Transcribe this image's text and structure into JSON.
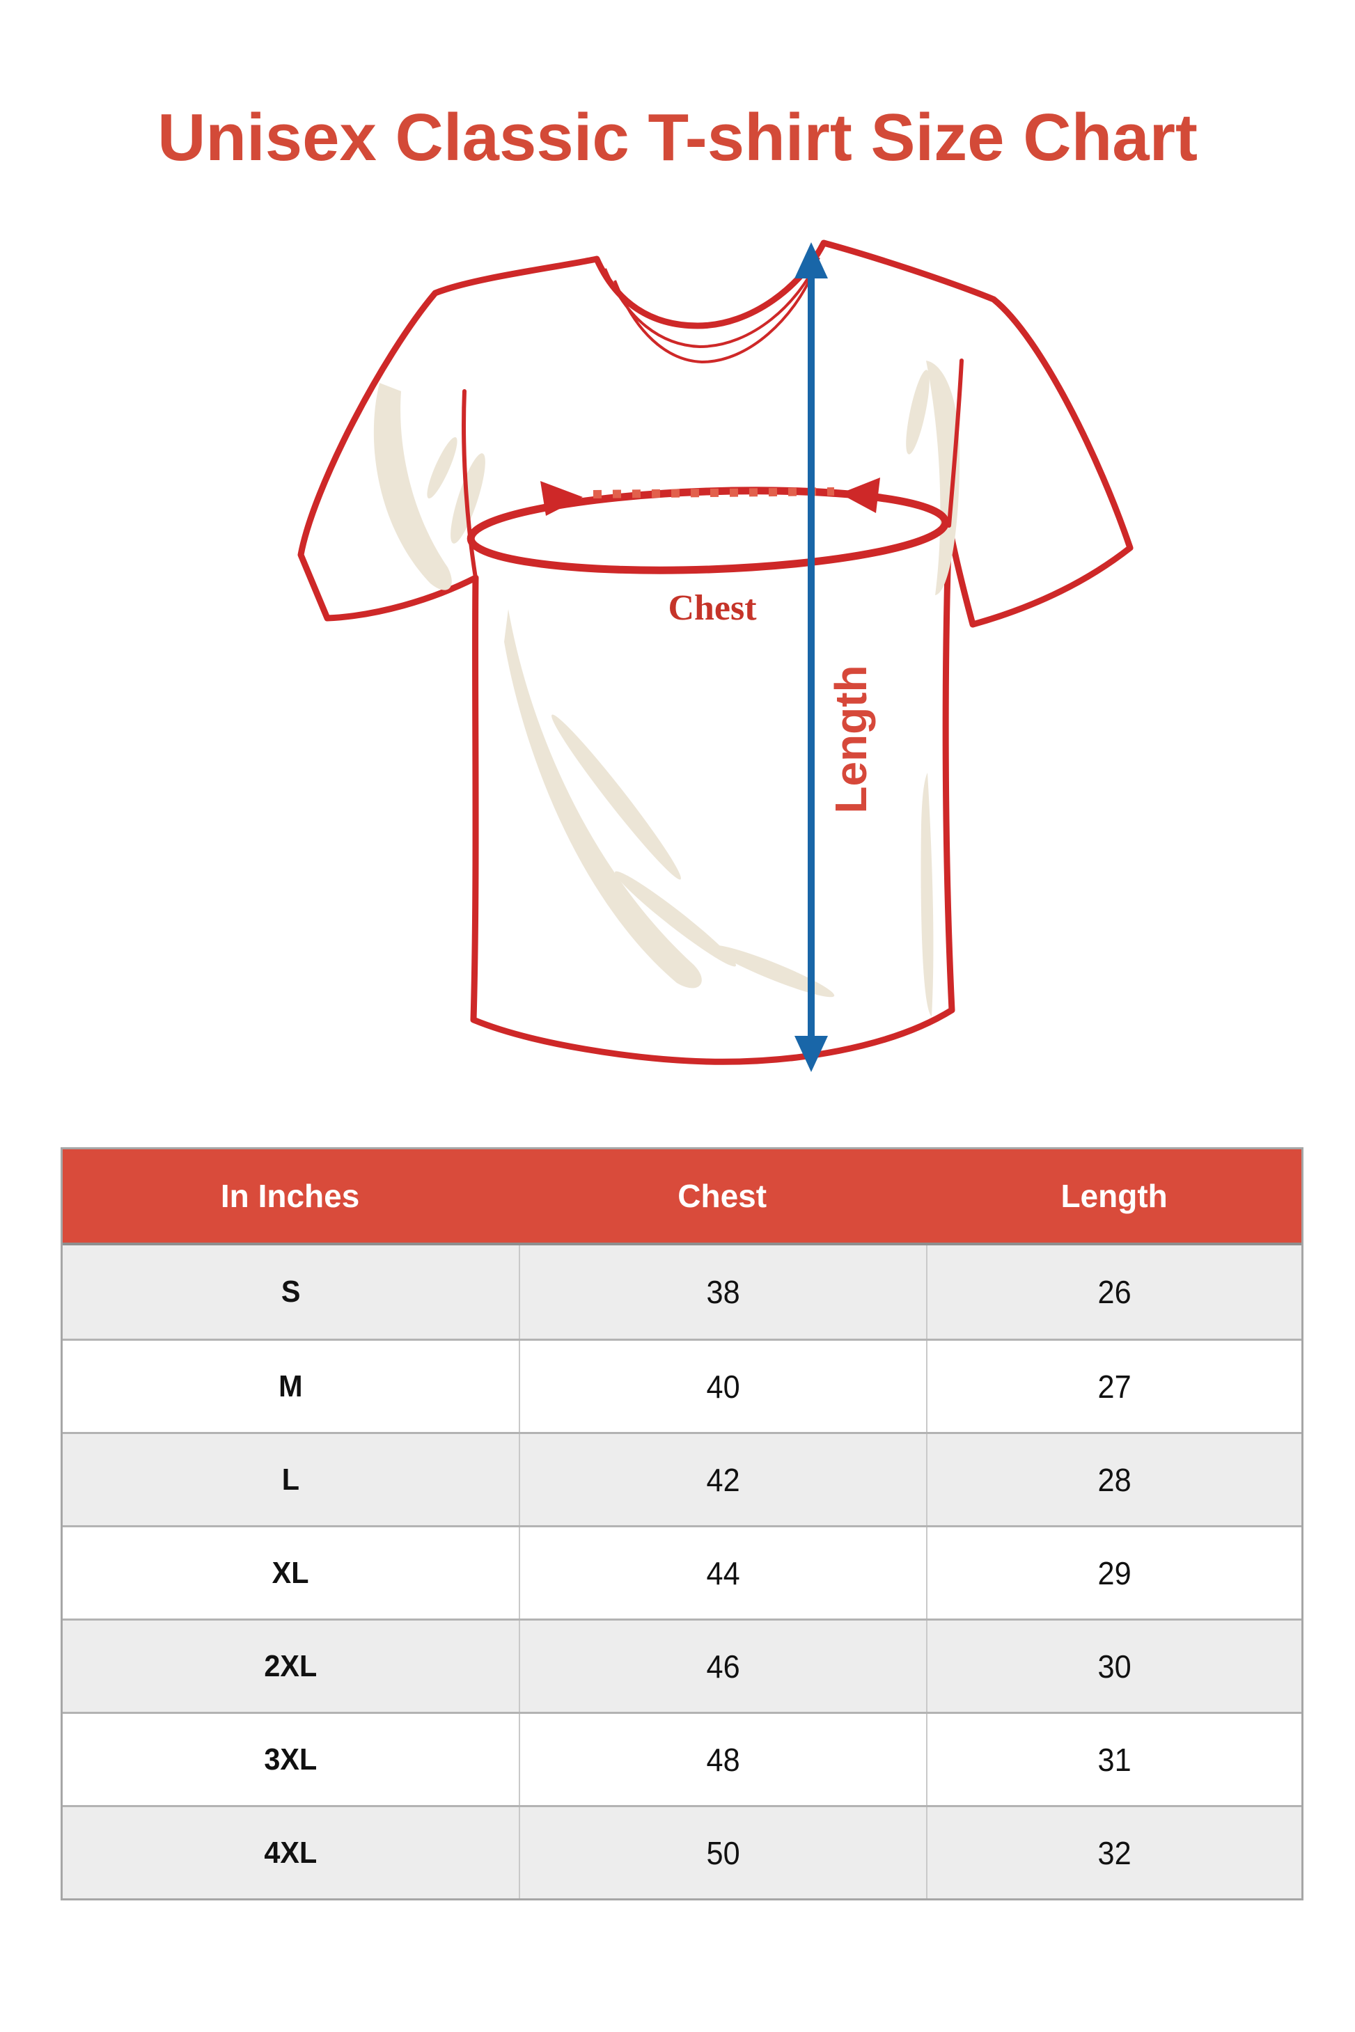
{
  "title": "Unisex Classic T-shirt Size Chart",
  "diagram": {
    "chest_label": "Chest",
    "length_label": "Length"
  },
  "table": {
    "headers": [
      "In Inches",
      "Chest",
      "Length"
    ],
    "rows": [
      {
        "size": "S",
        "chest": "38",
        "length": "26"
      },
      {
        "size": "M",
        "chest": "40",
        "length": "27"
      },
      {
        "size": "L",
        "chest": "42",
        "length": "28"
      },
      {
        "size": "XL",
        "chest": "44",
        "length": "29"
      },
      {
        "size": "2XL",
        "chest": "46",
        "length": "30"
      },
      {
        "size": "3XL",
        "chest": "48",
        "length": "31"
      },
      {
        "size": "4XL",
        "chest": "50",
        "length": "32"
      }
    ]
  },
  "chart_data": {
    "type": "table",
    "title": "Unisex Classic T-shirt Size Chart",
    "columns": [
      "In Inches",
      "Chest",
      "Length"
    ],
    "rows": [
      [
        "S",
        38,
        26
      ],
      [
        "M",
        40,
        27
      ],
      [
        "L",
        42,
        28
      ],
      [
        "XL",
        44,
        29
      ],
      [
        "2XL",
        46,
        30
      ],
      [
        "3XL",
        48,
        31
      ],
      [
        "4XL",
        50,
        32
      ]
    ]
  },
  "colors": {
    "title_red": "#d34a38",
    "header_red": "#d94b3b",
    "shirt_outline_red": "#ce2828",
    "dotted_line_red": "#e2604c",
    "measure_blue": "#1966a8",
    "chest_label_red": "#c53429",
    "length_label_red": "#d6483a",
    "shadow_cream": "#ece5d6",
    "alt_row_gray": "#ededed"
  }
}
